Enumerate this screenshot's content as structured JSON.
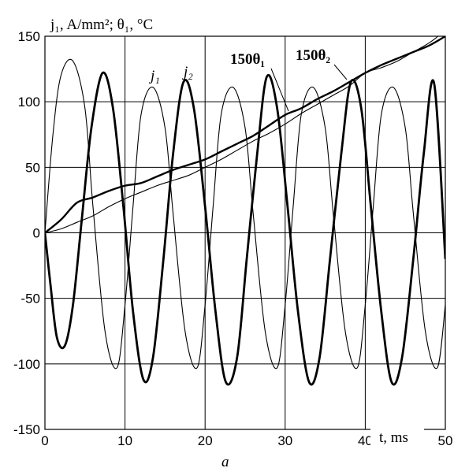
{
  "chart_data": {
    "type": "line",
    "title": "",
    "ylabel": "j₁, A/mm²;  θ₁, °C",
    "xlabel": "t, ms",
    "subfigure_label": "a",
    "xlim": [
      0,
      50
    ],
    "ylim": [
      -150,
      150
    ],
    "x_ticks": [
      0,
      10,
      20,
      30,
      40,
      50
    ],
    "y_ticks": [
      -150,
      -100,
      -50,
      0,
      50,
      100,
      150
    ],
    "grid": true,
    "series": [
      {
        "name": "j1",
        "label": "j₁",
        "x": [
          0,
          1,
          2,
          3.5,
          5,
          6,
          7.5,
          9,
          10,
          11,
          12,
          13.5,
          15,
          16,
          17.5,
          19,
          20,
          21,
          22,
          23.5,
          25,
          26,
          27.5,
          29,
          30,
          31,
          32,
          33.5,
          35,
          36,
          37.5,
          39,
          40,
          41,
          42,
          43.5,
          45,
          46,
          47.5,
          49,
          50
        ],
        "y": [
          0,
          75,
          120,
          131,
          95,
          20,
          -75,
          -103,
          -55,
          20,
          90,
          111,
          80,
          15,
          -75,
          -103,
          -55,
          20,
          90,
          111,
          80,
          15,
          -75,
          -103,
          -55,
          20,
          90,
          111,
          80,
          15,
          -75,
          -103,
          -55,
          20,
          90,
          111,
          80,
          15,
          -75,
          -103,
          -55
        ]
      },
      {
        "name": "j2",
        "label": "j₂",
        "x": [
          0,
          0.7,
          1.5,
          2.5,
          3.5,
          4.6,
          5.8,
          7.2,
          8.5,
          9.8,
          11,
          12.3,
          13.5,
          14.8,
          16,
          17.3,
          18.6,
          20,
          21.3,
          22.6,
          24,
          25.2,
          26.5,
          27.7,
          29,
          30.3,
          31.6,
          33,
          34.3,
          35.6,
          37,
          38.2,
          39.5,
          40.7,
          42,
          43.3,
          44.6,
          46,
          47.3,
          48.6,
          50
        ],
        "y": [
          0,
          -40,
          -80,
          -86,
          -55,
          10,
          80,
          122,
          95,
          20,
          -60,
          -112,
          -95,
          -20,
          60,
          115,
          95,
          20,
          -60,
          -114,
          -95,
          -20,
          60,
          119,
          95,
          20,
          -60,
          -114,
          -95,
          -20,
          60,
          115,
          95,
          20,
          -60,
          -114,
          -95,
          -20,
          60,
          114,
          -20
        ]
      },
      {
        "name": "150theta1",
        "label": "150θ₁",
        "x": [
          0,
          2,
          4,
          6,
          8,
          10,
          12,
          14,
          16,
          18,
          20,
          22,
          24,
          26,
          28,
          30,
          32,
          34,
          36,
          38,
          40,
          42,
          44,
          46,
          48,
          50
        ],
        "y": [
          0,
          10,
          23,
          27,
          32,
          36,
          38,
          43,
          48,
          52,
          56,
          62,
          68,
          74,
          82,
          90,
          95,
          102,
          108,
          115,
          122,
          128,
          133,
          138,
          143,
          150
        ]
      },
      {
        "name": "150theta2",
        "label": "150θ₂",
        "x": [
          0,
          2,
          4,
          6,
          8,
          10,
          12,
          14,
          16,
          18,
          20,
          22,
          24,
          26,
          28,
          30,
          32,
          34,
          36,
          38,
          40,
          42,
          44,
          46,
          48,
          49.5
        ],
        "y": [
          0,
          3,
          8,
          13,
          20,
          26,
          31,
          36,
          40,
          44,
          50,
          56,
          63,
          70,
          76,
          83,
          91,
          98,
          105,
          112,
          122,
          126,
          131,
          138,
          145,
          152
        ]
      }
    ]
  }
}
